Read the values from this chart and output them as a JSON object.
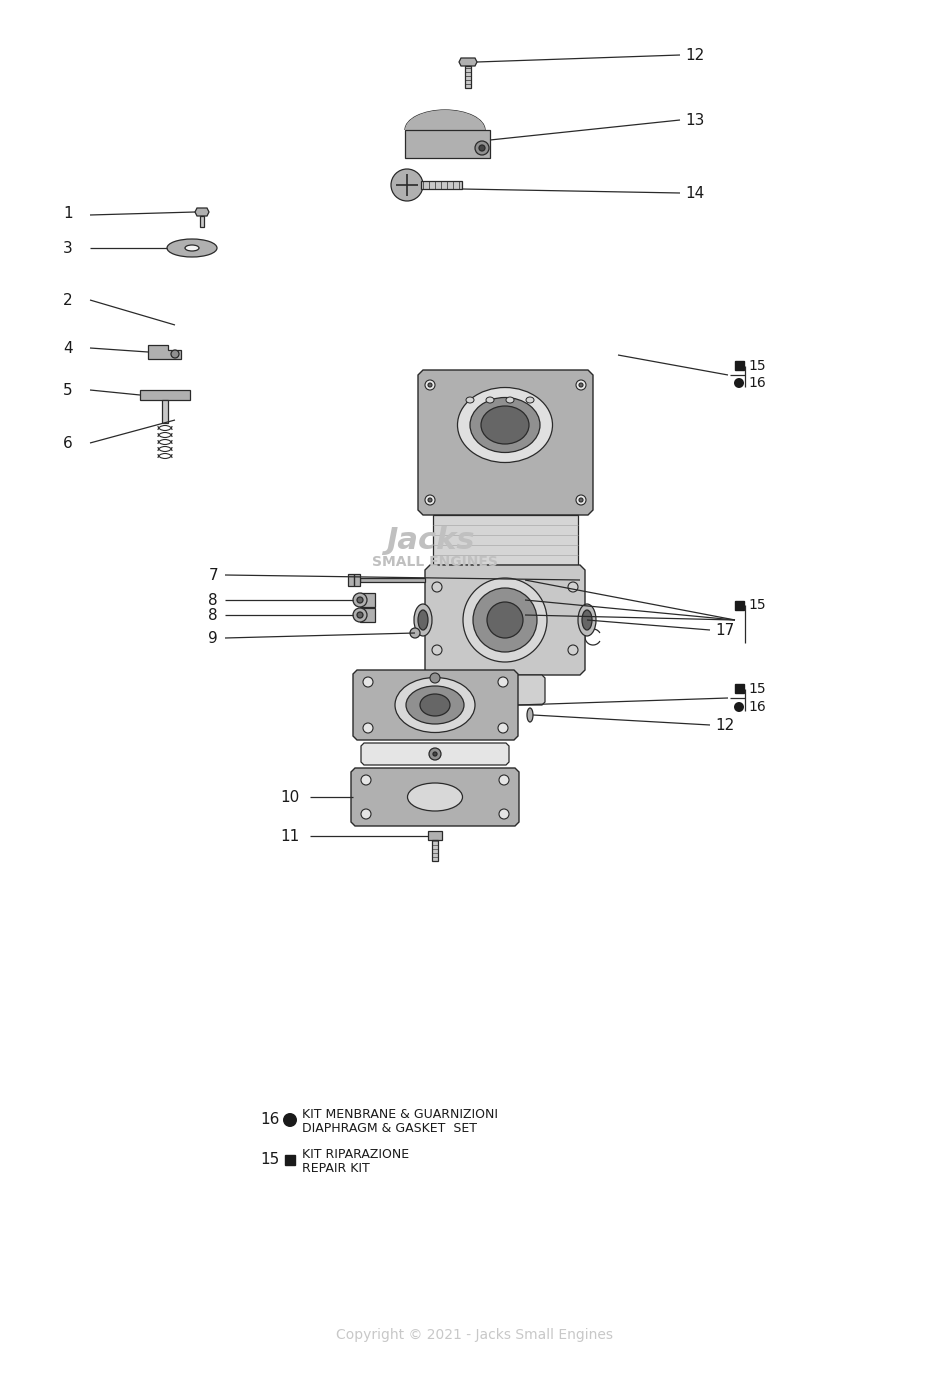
{
  "bg_color": "#ffffff",
  "lc": "#2a2a2a",
  "tc": "#1a1a1a",
  "gray1": "#c8c8c8",
  "gray2": "#b0b0b0",
  "gray3": "#909090",
  "gray4": "#666666",
  "gray5": "#444444",
  "wm_color": "#bbbbbb",
  "parts": {
    "label_16_title": "KIT MENBRANE & GUARNIZIONI",
    "label_16_sub": "DIAPHRAGM & GASKET  SET",
    "label_15_title": "KIT RIPARAZIONE",
    "label_15_sub": "REPAIR KIT",
    "copyright": "Copyright © 2021 - Jacks Small Engines"
  }
}
